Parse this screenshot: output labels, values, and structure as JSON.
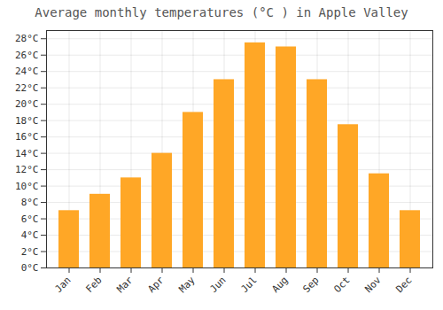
{
  "chart_data": {
    "type": "bar",
    "title": "Average monthly temperatures (°C ) in Apple Valley",
    "categories": [
      "Jan",
      "Feb",
      "Mar",
      "Apr",
      "May",
      "Jun",
      "Jul",
      "Aug",
      "Sep",
      "Oct",
      "Nov",
      "Dec"
    ],
    "values": [
      7,
      9,
      11,
      14,
      19,
      23,
      27.5,
      27,
      23,
      17.5,
      11.5,
      7
    ],
    "color": "#FFA726",
    "ylim": [
      0,
      29
    ],
    "yticks": [
      {
        "value": 0,
        "label": "0°C"
      },
      {
        "value": 2,
        "label": "2°C"
      },
      {
        "value": 4,
        "label": "4°C"
      },
      {
        "value": 6,
        "label": "6°C"
      },
      {
        "value": 8,
        "label": "8°C"
      },
      {
        "value": 10,
        "label": "10°C"
      },
      {
        "value": 12,
        "label": "12°C"
      },
      {
        "value": 14,
        "label": "14°C"
      },
      {
        "value": 16,
        "label": "16°C"
      },
      {
        "value": 18,
        "label": "18°C"
      },
      {
        "value": 20,
        "label": "20°C"
      },
      {
        "value": 22,
        "label": "22°C"
      },
      {
        "value": 24,
        "label": "24°C"
      },
      {
        "value": 26,
        "label": "26°C"
      },
      {
        "value": 28,
        "label": "28°C"
      }
    ],
    "grid": true
  }
}
